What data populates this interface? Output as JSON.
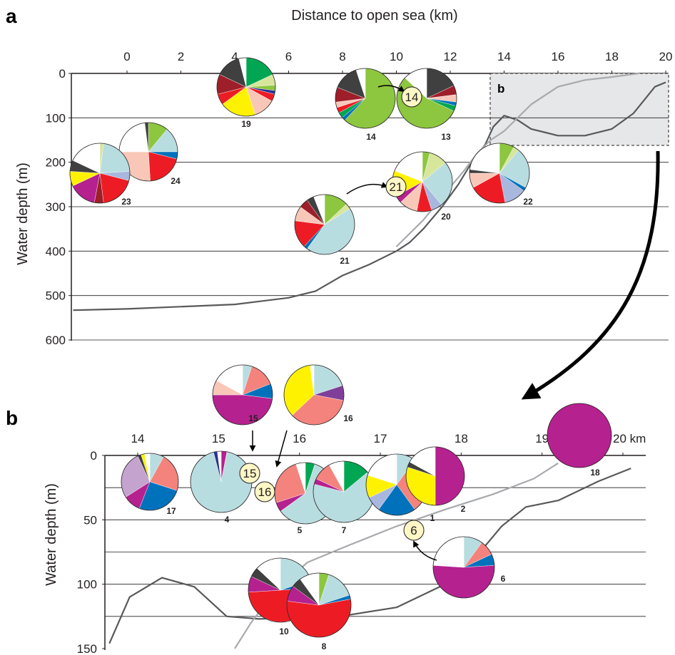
{
  "panel_a": {
    "letter": "a",
    "inset_letter": "b",
    "xlabel": "Distance to open sea (km)",
    "ylabel": "Water depth (m)",
    "x_ticks": [
      "0",
      "2",
      "4",
      "6",
      "8",
      "10",
      "12",
      "14",
      "16",
      "18",
      "20"
    ],
    "y_ticks": [
      "0",
      "100",
      "200",
      "300",
      "400",
      "500",
      "600"
    ]
  },
  "panel_b": {
    "letter": "b",
    "ylabel": "Water depth (m)",
    "x_ticks": [
      "14",
      "15",
      "16",
      "17",
      "18",
      "19",
      "20 km"
    ],
    "y_ticks": [
      "0",
      "50",
      "100",
      "150"
    ]
  },
  "chart_data": [
    {
      "type": "line",
      "panel": "a",
      "xlabel": "Distance to open sea (km)",
      "ylabel": "Water depth (m)",
      "xlim": [
        -2,
        20
      ],
      "ylim": [
        0,
        600
      ],
      "series": [
        {
          "color": "#58595b",
          "x": [
            -2,
            0,
            4,
            6,
            7,
            8,
            9,
            10,
            10.5,
            11,
            11.7,
            12.3,
            12.8,
            13.3,
            13.6,
            14,
            14.5,
            15,
            16,
            17,
            18,
            18.8,
            19.2,
            19.6,
            20
          ],
          "y": [
            533,
            530,
            520,
            505,
            490,
            455,
            430,
            400,
            380,
            350,
            300,
            250,
            200,
            160,
            120,
            95,
            105,
            125,
            140,
            140,
            125,
            90,
            60,
            30,
            20
          ]
        },
        {
          "color": "#a7a9ac",
          "x": [
            10,
            11,
            11.8,
            12.5,
            13,
            13.5,
            14,
            15,
            16,
            17,
            18,
            19
          ],
          "y": [
            390,
            330,
            270,
            220,
            180,
            150,
            130,
            70,
            30,
            15,
            8,
            0
          ]
        }
      ],
      "pies": [
        {
          "label": "19",
          "colors": [
            "#00a651",
            "#d7e69b",
            "#8dc63f",
            "#2e3192",
            "#ed1c24",
            "#f9c7b8",
            "#fff200",
            "#ed1c24",
            "#9e1f29",
            "#404040",
            "#ffffff"
          ],
          "values": [
            18,
            6,
            3,
            2,
            4,
            12,
            20,
            6,
            11,
            14,
            4
          ]
        },
        {
          "label": "14",
          "colors": [
            "#8dc63f",
            "#0072bc",
            "#00a651",
            "#ed1c24",
            "#f9c7b8",
            "#9e1f29",
            "#404040",
            "#ffffff"
          ],
          "values": [
            62,
            2,
            3,
            3,
            3,
            8,
            14,
            5
          ]
        },
        {
          "label": "13",
          "colors": [
            "#404040",
            "#9e1f29",
            "#f9c7b8",
            "#0072bc",
            "#00a651",
            "#8dc63f",
            "#ffffff"
          ],
          "values": [
            18,
            5,
            4,
            2,
            3,
            55,
            13
          ]
        },
        {
          "label": "24",
          "colors": [
            "#8dc63f",
            "#b8dde0",
            "#0072bc",
            "#ed1c24",
            "#f9c7b8",
            "#ffffff",
            "#404040"
          ],
          "values": [
            11,
            14,
            4,
            20,
            26,
            23,
            2
          ]
        },
        {
          "label": "23",
          "colors": [
            "#d7e69b",
            "#b8dde0",
            "#a8b7de",
            "#ed1c24",
            "#9e1f29",
            "#b5218f",
            "#fff200",
            "#404040",
            "#ffffff"
          ],
          "values": [
            2,
            22,
            5,
            19,
            5,
            15,
            8,
            6,
            18
          ]
        },
        {
          "label": "21",
          "colors": [
            "#8dc63f",
            "#d7e69b",
            "#b8dde0",
            "#0072bc",
            "#ed1c24",
            "#f9c7b8",
            "#9e1f29",
            "#404040",
            "#ffffff"
          ],
          "values": [
            13,
            3,
            44,
            2,
            15,
            8,
            5,
            4,
            6
          ]
        },
        {
          "label": "20",
          "colors": [
            "#8dc63f",
            "#d7e69b",
            "#b8dde0",
            "#a8b7de",
            "#ed1c24",
            "#f9c7b8",
            "#b5218f",
            "#fff200",
            "#ffffff"
          ],
          "values": [
            4,
            10,
            25,
            6,
            8,
            10,
            4,
            14,
            19
          ]
        },
        {
          "label": "22",
          "colors": [
            "#8dc63f",
            "#d7e69b",
            "#b8dde0",
            "#0072bc",
            "#a8b7de",
            "#ed1c24",
            "#f9c7b8",
            "#404040",
            "#ffffff"
          ],
          "values": [
            8,
            3,
            22,
            2,
            12,
            20,
            8,
            2,
            23
          ]
        }
      ]
    },
    {
      "type": "line",
      "panel": "b",
      "ylabel": "Water depth (m)",
      "xlim": [
        13.3,
        20.2
      ],
      "ylim": [
        0,
        150
      ],
      "series": [
        {
          "color": "#58595b",
          "x": [
            13.65,
            13.9,
            14.3,
            14.7,
            15.1,
            15.5,
            16.5,
            17.2,
            17.8,
            18.1,
            18.5,
            18.8,
            19.2,
            19.7,
            20.1
          ],
          "y": [
            146,
            110,
            95,
            102,
            125,
            127,
            125,
            118,
            100,
            85,
            55,
            40,
            35,
            20,
            10
          ]
        },
        {
          "color": "#a7a9ac",
          "x": [
            15.2,
            15.4,
            15.7,
            16.1,
            16.6,
            17.2,
            17.8,
            18.4,
            18.9,
            19.2
          ],
          "y": [
            150,
            130,
            105,
            83,
            70,
            55,
            42,
            30,
            18,
            6
          ]
        }
      ],
      "pies": [
        {
          "label": "17",
          "colors": [
            "#b8dde0",
            "#f4837d",
            "#0072bc",
            "#b5218f",
            "#c5a3cf",
            "#404040",
            "#fff200",
            "#ffffff"
          ],
          "values": [
            8,
            22,
            26,
            10,
            27,
            2,
            2,
            3
          ]
        },
        {
          "label": "4",
          "colors": [
            "#b5218f",
            "#b8dde0",
            "#2e3192",
            "#ffffff"
          ],
          "values": [
            3,
            93,
            2,
            2
          ]
        },
        {
          "label": "5",
          "colors": [
            "#00a651",
            "#b8dde0",
            "#b5218f",
            "#f4837d",
            "#ffffff"
          ],
          "values": [
            5,
            60,
            5,
            25,
            5
          ]
        },
        {
          "label": "7",
          "colors": [
            "#00a651",
            "#b8dde0",
            "#b5218f",
            "#f4837d",
            "#ffffff"
          ],
          "values": [
            14,
            65,
            3,
            10,
            8
          ]
        },
        {
          "label": "1",
          "colors": [
            "#b8dde0",
            "#f4837d",
            "#0072bc",
            "#a8b7de",
            "#fff200",
            "#ffffff"
          ],
          "values": [
            10,
            30,
            20,
            8,
            12,
            20
          ]
        },
        {
          "label": "2",
          "colors": [
            "#b5218f",
            "#fff200",
            "#404040",
            "#ffffff"
          ],
          "values": [
            50,
            30,
            3,
            17
          ]
        },
        {
          "label": "18",
          "colors": [
            "#b5218f"
          ],
          "values": [
            100
          ]
        },
        {
          "label": "6",
          "colors": [
            "#b8dde0",
            "#f4837d",
            "#0072bc",
            "#b5218f",
            "#ffffff"
          ],
          "values": [
            10,
            8,
            6,
            52,
            24
          ]
        },
        {
          "label": "10",
          "colors": [
            "#b8dde0",
            "#0072bc",
            "#ed1c24",
            "#b5218f",
            "#404040",
            "#ffffff"
          ],
          "values": [
            20,
            4,
            50,
            8,
            5,
            13
          ]
        },
        {
          "label": "8",
          "colors": [
            "#8dc63f",
            "#b8dde0",
            "#0072bc",
            "#ed1c24",
            "#b5218f",
            "#404040",
            "#ffffff"
          ],
          "values": [
            5,
            15,
            2,
            55,
            8,
            5,
            10
          ]
        },
        {
          "label": "15",
          "colors": [
            "#b8dde0",
            "#f4837d",
            "#0072bc",
            "#b5218f",
            "#f9c7b8",
            "#ffffff"
          ],
          "values": [
            5,
            14,
            8,
            48,
            8,
            17
          ]
        },
        {
          "label": "16",
          "colors": [
            "#b8dde0",
            "#7f3f98",
            "#f4837d",
            "#fff200",
            "#ffffff"
          ],
          "values": [
            20,
            8,
            35,
            35,
            2
          ]
        }
      ],
      "reference_markers": [
        "14",
        "21",
        "15",
        "16",
        "6"
      ]
    }
  ]
}
